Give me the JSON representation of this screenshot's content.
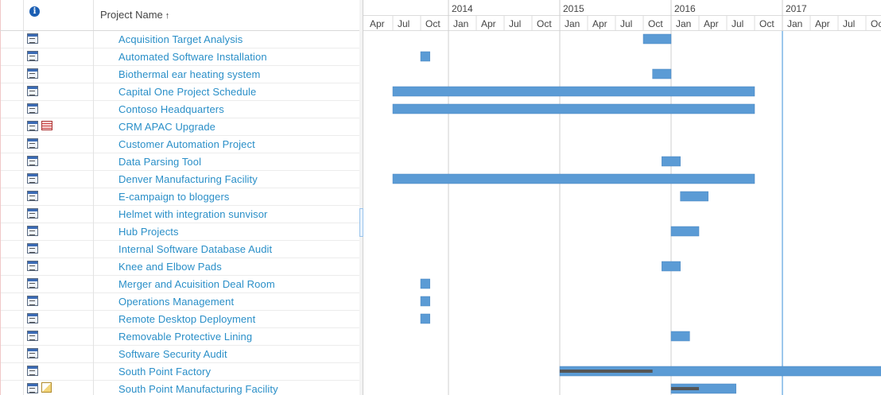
{
  "grid": {
    "header": {
      "info_icon": "info-icon",
      "info_glyph": "i",
      "column_title": "Project Name",
      "sort_glyph": "↑"
    },
    "rows": [
      {
        "name": "Acquisition Target Analysis",
        "icons": [
          "project-icon"
        ]
      },
      {
        "name": "Automated Software Installation",
        "icons": [
          "project-icon"
        ]
      },
      {
        "name": "Biothermal ear heating system",
        "icons": [
          "project-icon"
        ]
      },
      {
        "name": "Capital One Project Schedule",
        "icons": [
          "project-icon"
        ]
      },
      {
        "name": "Contoso Headquarters",
        "icons": [
          "project-icon"
        ]
      },
      {
        "name": "CRM APAC Upgrade",
        "icons": [
          "project-icon",
          "issues-icon"
        ]
      },
      {
        "name": "Customer Automation Project",
        "icons": [
          "project-icon"
        ]
      },
      {
        "name": "Data Parsing Tool",
        "icons": [
          "project-icon"
        ]
      },
      {
        "name": "Denver Manufacturing Facility",
        "icons": [
          "project-icon"
        ]
      },
      {
        "name": "E-campaign to bloggers",
        "icons": [
          "project-icon"
        ]
      },
      {
        "name": "Helmet with integration sunvisor",
        "icons": [
          "project-icon"
        ]
      },
      {
        "name": "Hub Projects",
        "icons": [
          "project-icon"
        ]
      },
      {
        "name": "Internal Software Database Audit",
        "icons": [
          "project-icon"
        ]
      },
      {
        "name": "Knee and Elbow Pads",
        "icons": [
          "project-icon"
        ]
      },
      {
        "name": "Merger and Acuisition Deal Room",
        "icons": [
          "project-icon"
        ]
      },
      {
        "name": "Operations Management",
        "icons": [
          "project-icon"
        ]
      },
      {
        "name": "Remote Desktop Deployment",
        "icons": [
          "project-icon"
        ]
      },
      {
        "name": "Removable Protective Lining",
        "icons": [
          "project-icon"
        ]
      },
      {
        "name": "Software Security Audit",
        "icons": [
          "project-icon"
        ]
      },
      {
        "name": "South Point Factory",
        "icons": [
          "project-icon"
        ]
      },
      {
        "name": "South Point Manufacturing Facility",
        "icons": [
          "project-icon",
          "documents-icon"
        ]
      }
    ]
  },
  "timeline": {
    "years": [
      "2014",
      "2015",
      "2016",
      "2017"
    ],
    "quarters": [
      "Apr",
      "Jul",
      "Oct",
      "Jan",
      "Apr",
      "Jul",
      "Oct",
      "Jan",
      "Apr",
      "Jul",
      "Oct",
      "Jan",
      "Apr",
      "Jul",
      "Oct",
      "Jan",
      "Apr",
      "Jul",
      "Oc"
    ],
    "start": "2013-04",
    "today": "2017-01",
    "colors": {
      "bar": "#5b9bd5",
      "progress": "#555555",
      "today_line": "#3a8fd9",
      "year_line": "#cfcfcf"
    },
    "bars": [
      {
        "row": 0,
        "start": "2015-10",
        "end": "2016-01"
      },
      {
        "row": 1,
        "start": "2013-10",
        "end": "2013-11"
      },
      {
        "row": 2,
        "start": "2015-11",
        "end": "2016-01"
      },
      {
        "row": 3,
        "start": "2013-07",
        "end": "2016-10"
      },
      {
        "row": 4,
        "start": "2013-07",
        "end": "2016-10"
      },
      {
        "row": 7,
        "start": "2015-12",
        "end": "2016-02"
      },
      {
        "row": 8,
        "start": "2013-07",
        "end": "2016-10"
      },
      {
        "row": 9,
        "start": "2016-02",
        "end": "2016-05"
      },
      {
        "row": 11,
        "start": "2016-01",
        "end": "2016-04"
      },
      {
        "row": 13,
        "start": "2015-12",
        "end": "2016-02"
      },
      {
        "row": 14,
        "start": "2013-10",
        "end": "2013-11"
      },
      {
        "row": 15,
        "start": "2013-10",
        "end": "2013-11"
      },
      {
        "row": 16,
        "start": "2013-10",
        "end": "2013-11"
      },
      {
        "row": 17,
        "start": "2016-01",
        "end": "2016-03"
      },
      {
        "row": 19,
        "start": "2015-01",
        "end": "2018-02",
        "progress_end": "2015-11"
      },
      {
        "row": 20,
        "start": "2016-01",
        "end": "2016-08",
        "progress_end": "2016-04"
      }
    ]
  }
}
